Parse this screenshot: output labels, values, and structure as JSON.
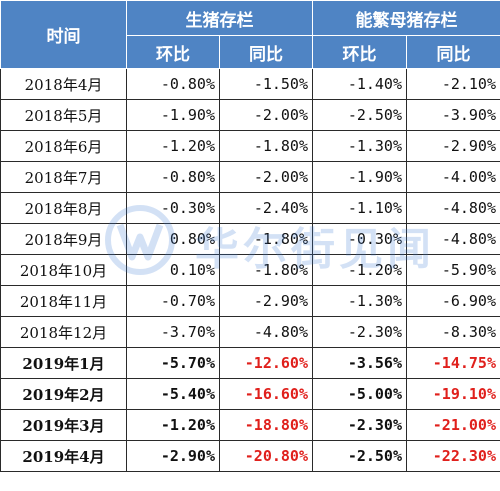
{
  "header": {
    "time": "时间",
    "group1": "生猪存栏",
    "group2": "能繁母猪存栏",
    "mom": "环比",
    "yoy": "同比"
  },
  "watermark": {
    "text": "华尔街见闻"
  },
  "rows": [
    {
      "date": "2018年4月",
      "v1": "-0.80%",
      "v2": "-1.50%",
      "v3": "-1.40%",
      "v4": "-2.10%"
    },
    {
      "date": "2018年5月",
      "v1": "-1.90%",
      "v2": "-2.00%",
      "v3": "-2.50%",
      "v4": "-3.90%"
    },
    {
      "date": "2018年6月",
      "v1": "-1.20%",
      "v2": "-1.80%",
      "v3": "-1.30%",
      "v4": "-2.90%"
    },
    {
      "date": "2018年7月",
      "v1": "-0.80%",
      "v2": "-2.00%",
      "v3": "-1.90%",
      "v4": "-4.00%"
    },
    {
      "date": "2018年8月",
      "v1": "-0.30%",
      "v2": "-2.40%",
      "v3": "-1.10%",
      "v4": "-4.80%"
    },
    {
      "date": "2018年9月",
      "v1": "0.80%",
      "v2": "-1.80%",
      "v3": "-0.30%",
      "v4": "-4.80%"
    },
    {
      "date": "2018年10月",
      "v1": "0.10%",
      "v2": "-1.80%",
      "v3": "-1.20%",
      "v4": "-5.90%"
    },
    {
      "date": "2018年11月",
      "v1": "-0.70%",
      "v2": "-2.90%",
      "v3": "-1.30%",
      "v4": "-6.90%"
    },
    {
      "date": "2018年12月",
      "v1": "-3.70%",
      "v2": "-4.80%",
      "v3": "-2.30%",
      "v4": "-8.30%"
    },
    {
      "date": "2019年1月",
      "v1": "-5.70%",
      "v2": "-12.60%",
      "v3": "-3.56%",
      "v4": "-14.75%"
    },
    {
      "date": "2019年2月",
      "v1": "-5.40%",
      "v2": "-16.60%",
      "v3": "-5.00%",
      "v4": "-19.10%"
    },
    {
      "date": "2019年3月",
      "v1": "-1.20%",
      "v2": "-18.80%",
      "v3": "-2.30%",
      "v4": "-21.00%"
    },
    {
      "date": "2019年4月",
      "v1": "-2.90%",
      "v2": "-20.80%",
      "v3": "-2.50%",
      "v4": "-22.30%"
    }
  ],
  "colors": {
    "header_bg": "#4f84c4",
    "highlight": "#e0201c"
  }
}
